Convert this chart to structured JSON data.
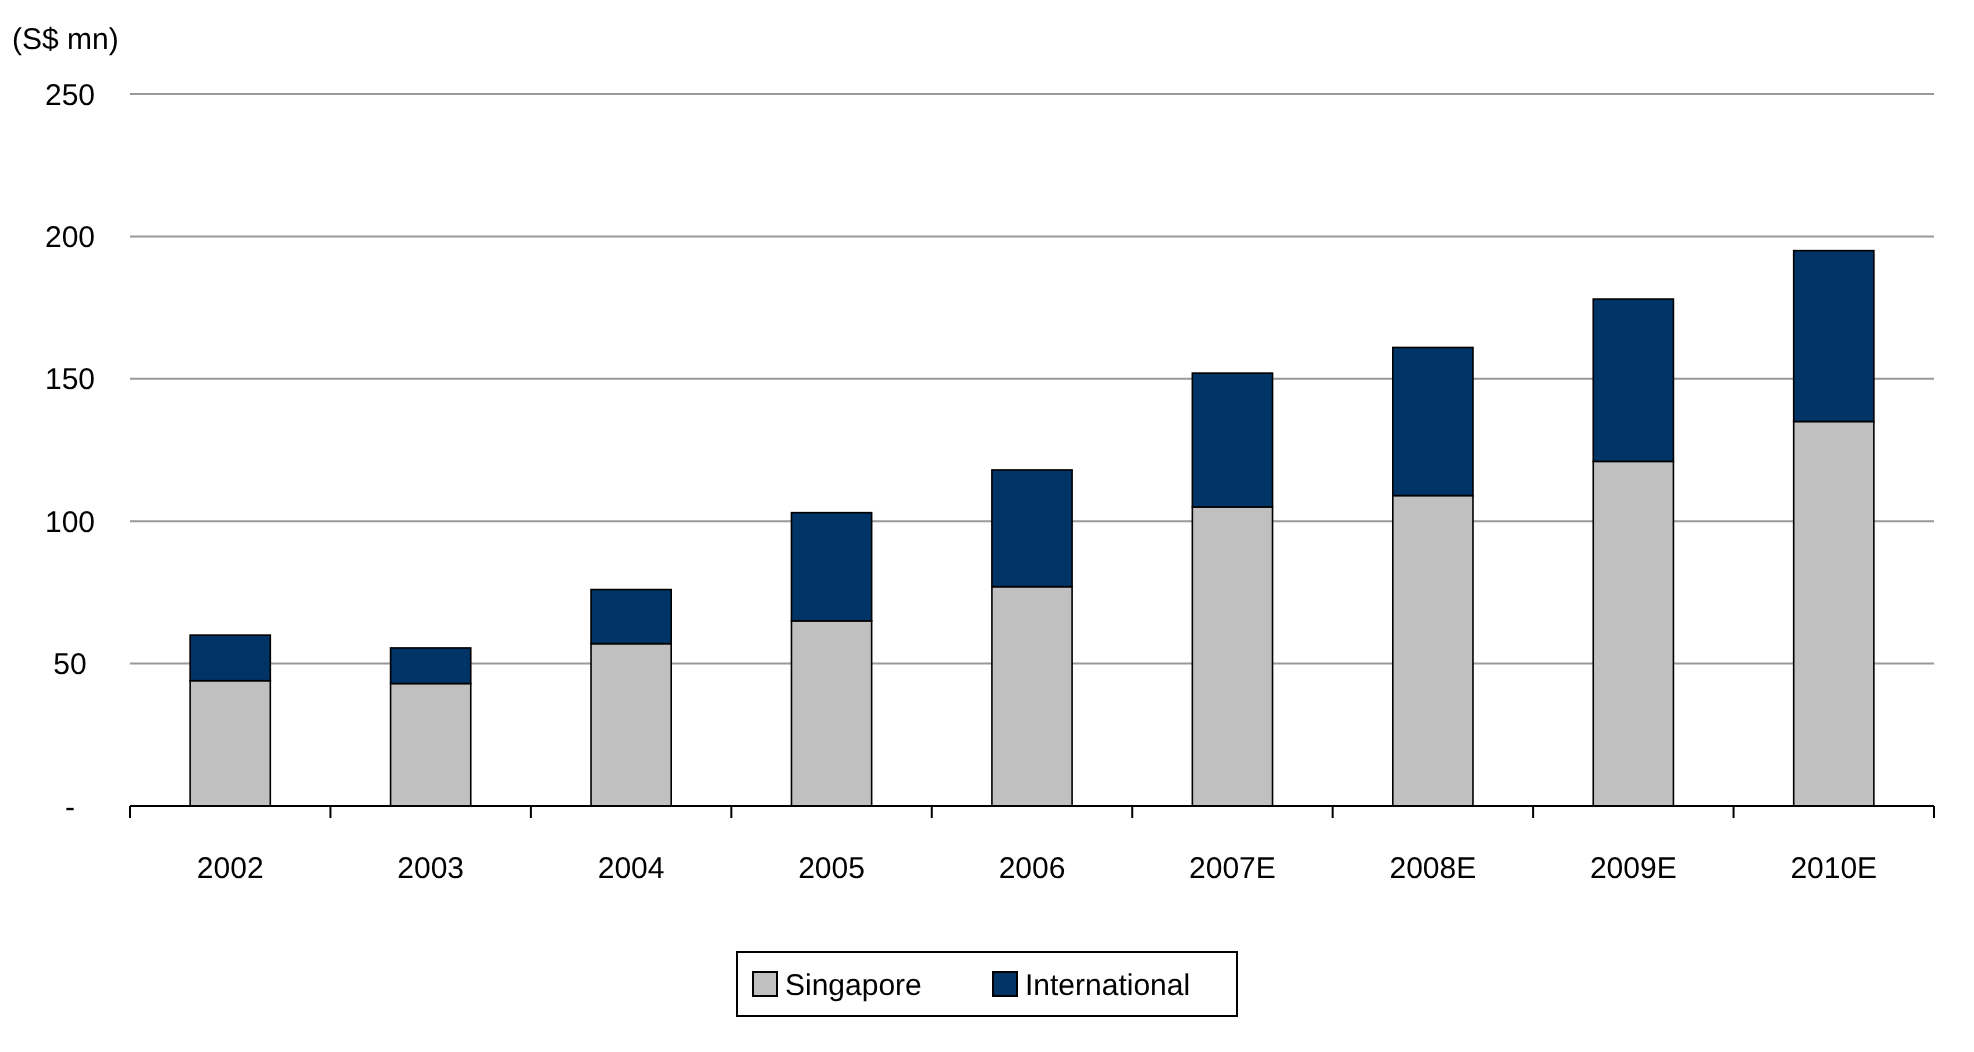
{
  "chart_data": {
    "type": "bar",
    "stacked": true,
    "ylabel": "(S$ mn)",
    "categories": [
      "2002",
      "2003",
      "2004",
      "2005",
      "2006",
      "2007E",
      "2008E",
      "2009E",
      "2010E"
    ],
    "series": [
      {
        "name": "Singapore",
        "color": "#c0c0c0",
        "values": [
          44,
          43,
          57,
          65,
          77,
          105,
          109,
          121,
          135
        ]
      },
      {
        "name": "International",
        "color": "#003366",
        "values": [
          16,
          12.5,
          19,
          38,
          41,
          47,
          52,
          57,
          60
        ]
      }
    ],
    "ylim": [
      0,
      250
    ],
    "yticks": [
      {
        "value": 0,
        "label": "-"
      },
      50,
      100,
      150,
      200,
      250
    ],
    "grid": "y",
    "legend": "bottom"
  }
}
